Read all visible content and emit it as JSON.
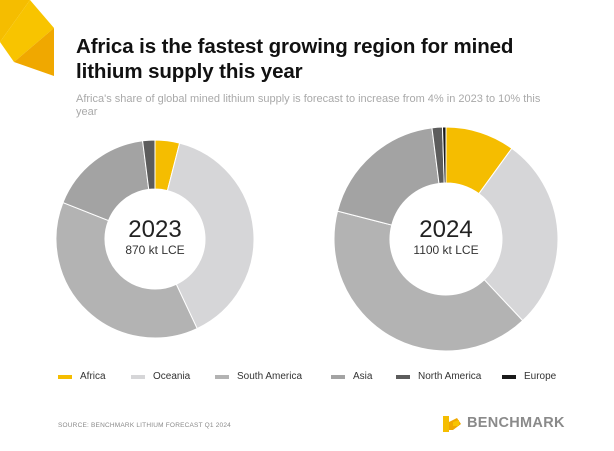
{
  "title": "Africa is the fastest growing region for mined lithium supply this year",
  "subtitle": "Africa's share of global mined lithium supply is forecast to increase from 4% in 2023 to 10% this year",
  "source": "SOURCE: BENCHMARK LITHIUM FORECAST Q1 2024",
  "brand": "BENCHMARK",
  "colors": {
    "Africa": "#f5bd00",
    "Oceania": "#d6d6d8",
    "South America": "#b3b3b3",
    "Asia": "#a3a3a3",
    "North America": "#5c5c5c",
    "Europe": "#1a1a1a"
  },
  "chart_data": [
    {
      "type": "pie",
      "donut": true,
      "year": "2023",
      "total_label": "870 kt LCE",
      "categories": [
        "Africa",
        "Oceania",
        "South America",
        "Asia",
        "North America",
        "Europe"
      ],
      "values": [
        4,
        39,
        38,
        17,
        2,
        0
      ]
    },
    {
      "type": "pie",
      "donut": true,
      "year": "2024",
      "total_label": "1100 kt LCE",
      "categories": [
        "Africa",
        "Oceania",
        "South America",
        "Asia",
        "North America",
        "Europe"
      ],
      "values": [
        10,
        28,
        41,
        19,
        1.5,
        0.5
      ]
    }
  ],
  "legend": [
    "Africa",
    "Oceania",
    "South America",
    "Asia",
    "North America",
    "Europe"
  ]
}
